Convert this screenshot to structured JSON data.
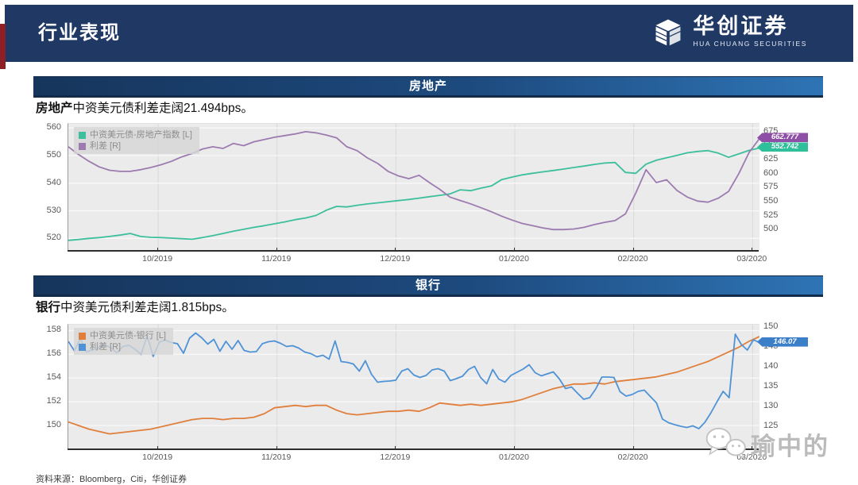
{
  "header": {
    "title": "行业表现",
    "logo_cn": "华创证券",
    "logo_en": "HUA CHUANG SECURITIES"
  },
  "sections": [
    {
      "banner": "房地产",
      "caption_bold": "房地产",
      "caption_rest": "中资美元债利差走阔21.494bps。"
    },
    {
      "banner": "银行",
      "caption_bold": "银行",
      "caption_rest": "中资美元债利差走阔1.815bps。"
    }
  ],
  "footer": {
    "source": "资料来源：Bloomberg，Citi，华创证券"
  },
  "watermark": {
    "text": "瑜中的",
    "icon": "wechat-icon"
  },
  "colors": {
    "header_navy": "#1f3864",
    "banner_dark": "#16355c",
    "banner_light": "#2e74b5",
    "green": "#3cbf9c",
    "purple": "#9d7bb0",
    "orange": "#e07f3c",
    "blue": "#4f93d6"
  },
  "chart_data": [
    {
      "type": "line",
      "title": "房地产",
      "grid": true,
      "legend_position": "top-left",
      "x_tick_labels": [
        "10/2019",
        "11/2019",
        "12/2019",
        "01/2020",
        "02/2020",
        "03/2020"
      ],
      "left_axis": {
        "ticks": [
          560,
          550,
          540,
          530,
          520
        ],
        "lim": [
          515.5,
          561.5
        ]
      },
      "right_axis": {
        "ticks": [
          675,
          650,
          625,
          600,
          575,
          550,
          525,
          500
        ],
        "lim": [
          462,
          689
        ]
      },
      "series": [
        {
          "name": "中资美元债-房地产指数 [L]",
          "axis": "left",
          "color": "#3cbf9c",
          "values": [
            519.3,
            519.6,
            520.0,
            520.3,
            520.7,
            521.2,
            521.8,
            520.7,
            520.4,
            520.3,
            520.1,
            519.9,
            519.7,
            520.3,
            521.0,
            521.8,
            522.6,
            523.3,
            524.0,
            524.6,
            525.3,
            526.0,
            526.8,
            527.4,
            528.3,
            530.2,
            531.6,
            531.4,
            532.0,
            532.5,
            532.9,
            533.3,
            533.7,
            534.1,
            534.6,
            535.1,
            535.6,
            536.1,
            537.6,
            537.3,
            538.2,
            539.0,
            541.3,
            542.2,
            543.0,
            543.6,
            544.1,
            544.6,
            545.1,
            545.7,
            546.2,
            546.8,
            547.3,
            547.5,
            543.9,
            543.6,
            546.9,
            548.3,
            549.2,
            550.1,
            551.0,
            551.5,
            551.8,
            550.9,
            549.4,
            550.6,
            551.9,
            552.742
          ]
        },
        {
          "name": "利差 [R]",
          "axis": "right",
          "color": "#9d7bb0",
          "values": [
            648,
            634,
            622,
            612,
            606,
            604,
            604,
            607,
            611,
            616,
            622,
            630,
            636,
            644,
            648,
            645,
            654,
            650,
            657,
            661,
            665,
            668,
            671,
            675,
            673,
            669,
            664,
            648,
            641,
            628,
            618,
            604,
            596,
            591,
            597,
            584,
            572,
            558,
            552,
            546,
            539,
            532,
            524,
            517,
            511,
            507,
            503,
            500,
            500,
            501,
            504,
            509,
            513,
            516,
            528,
            565,
            607,
            584,
            589,
            570,
            558,
            551,
            549,
            556,
            568,
            600,
            638,
            662.777
          ]
        }
      ],
      "end_labels": [
        {
          "text": "662.777",
          "bg": "#8f4fa6",
          "series": 1
        },
        {
          "text": "552.742",
          "bg": "#2fbf9b",
          "series": 0
        }
      ]
    },
    {
      "type": "line",
      "title": "银行",
      "grid": true,
      "legend_position": "top-left",
      "x_tick_labels": [
        "10/2019",
        "11/2019",
        "12/2019",
        "01/2020",
        "02/2020",
        "03/2020"
      ],
      "left_axis": {
        "ticks": [
          158,
          156,
          154,
          152,
          150
        ],
        "lim": [
          148.0,
          158.5
        ]
      },
      "right_axis": {
        "ticks": [
          150,
          145,
          140,
          135,
          130,
          125
        ],
        "lim": [
          119.2,
          150.6
        ]
      },
      "series": [
        {
          "name": "中资美元债-银行 [L]",
          "axis": "left",
          "color": "#e07f3c",
          "values": [
            150.3,
            150.0,
            149.7,
            149.5,
            149.3,
            149.4,
            149.5,
            149.6,
            149.7,
            149.9,
            150.1,
            150.3,
            150.5,
            150.6,
            150.6,
            150.5,
            150.6,
            150.6,
            150.7,
            151.0,
            151.5,
            151.6,
            151.7,
            151.6,
            151.7,
            151.7,
            151.3,
            151.0,
            150.9,
            151.0,
            151.1,
            151.2,
            151.2,
            151.3,
            151.2,
            151.5,
            151.9,
            151.8,
            151.7,
            151.8,
            151.7,
            151.8,
            151.9,
            152.0,
            152.2,
            152.5,
            152.8,
            153.1,
            153.3,
            153.5,
            153.5,
            153.6,
            153.5,
            153.7,
            153.8,
            153.9,
            154.0,
            154.1,
            154.3,
            154.5,
            154.8,
            155.1,
            155.4,
            155.8,
            156.2,
            156.6,
            157.1,
            157.5
          ]
        },
        {
          "name": "利差 [R]",
          "axis": "right",
          "color": "#4f93d6",
          "values": [
            146.4,
            144.0,
            147.1,
            143.7,
            144.3,
            144.8,
            145.5,
            144.8,
            143.5,
            145.1,
            145.4,
            144.4,
            143.1,
            147.8,
            142.6,
            146.2,
            146.7,
            146.1,
            145.8,
            143.4,
            147.2,
            148.5,
            147.3,
            145.7,
            146.9,
            143.9,
            146.4,
            144.4,
            146.6,
            144.1,
            143.7,
            143.8,
            145.8,
            146.3,
            146.5,
            145.9,
            145.1,
            145.3,
            144.7,
            143.7,
            143.3,
            142.5,
            142.9,
            141.9,
            146.5,
            141.3,
            141.1,
            140.7,
            138.9,
            141.5,
            138.1,
            136.1,
            136.3,
            136.4,
            136.6,
            138.9,
            139.5,
            137.9,
            137.3,
            137.8,
            139.2,
            139.5,
            138.9,
            136.5,
            137.0,
            137.6,
            139.3,
            140.1,
            137.3,
            135.7,
            139.3,
            136.9,
            136.1,
            137.8,
            138.6,
            139.4,
            140.5,
            138.5,
            137.7,
            138.2,
            138.7,
            136.9,
            134.5,
            134.9,
            133.3,
            131.8,
            132.2,
            134.4,
            137.4,
            137.4,
            137.3,
            133.7,
            132.6,
            133.0,
            133.8,
            134.1,
            132.5,
            130.9,
            126.8,
            125.9,
            125.4,
            125.0,
            124.7,
            125.1,
            124.4,
            126.0,
            128.4,
            131.2,
            133.8,
            132.2,
            148.2,
            145.6,
            144.2,
            146.8,
            146.07
          ]
        }
      ],
      "end_labels": [
        {
          "text": "146.07",
          "bg": "#3c7fc9",
          "series": 1
        }
      ]
    }
  ]
}
